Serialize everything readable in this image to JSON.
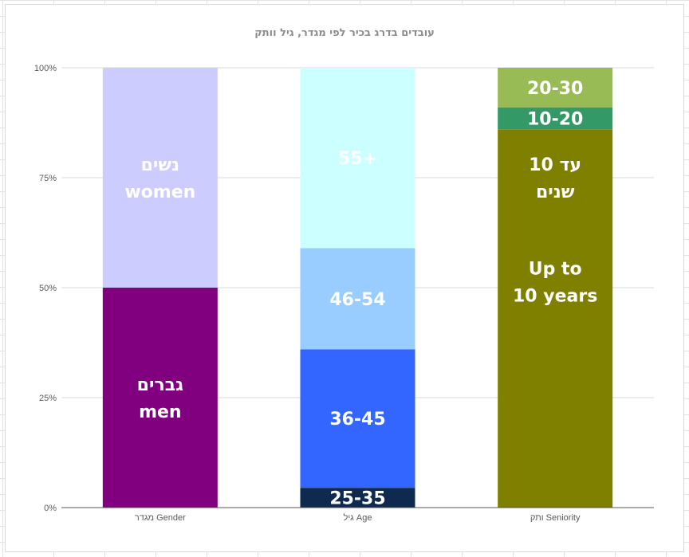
{
  "chart_data": {
    "type": "bar",
    "stacked": "percent",
    "title": "עובדים בדרג בכיר לפי מגדר, גיל וותק",
    "categories": [
      "מגדר Gender",
      "גיל Age",
      "ותק Seniority"
    ],
    "yticks": [
      "0%",
      "25%",
      "50%",
      "75%",
      "100%"
    ],
    "ylim": [
      0,
      100
    ],
    "grid": true,
    "bars": [
      {
        "category": "מגדר Gender",
        "segments": [
          {
            "label_lines": [
              "גברים",
              "men"
            ],
            "value": 50,
            "color": "#800080",
            "text_color": "#ffffff"
          },
          {
            "label_lines": [
              "נשים",
              "women"
            ],
            "value": 50,
            "color": "#ccccff",
            "text_color": "#ffffff"
          }
        ]
      },
      {
        "category": "גיל Age",
        "segments": [
          {
            "label_lines": [
              "25-35"
            ],
            "value": 4.5,
            "color": "#0e2a4f",
            "text_color": "#ffffff"
          },
          {
            "label_lines": [
              "36-45"
            ],
            "value": 31.5,
            "color": "#3366ff",
            "text_color": "#ffffff"
          },
          {
            "label_lines": [
              "46-54"
            ],
            "value": 23,
            "color": "#99ccff",
            "text_color": "#ffffff"
          },
          {
            "label_lines": [
              "55+"
            ],
            "value": 41,
            "color": "#ccffff",
            "text_color": "#ffffff"
          }
        ]
      },
      {
        "category": "ותק Seniority",
        "segments": [
          {
            "label_lines": [
              "Up to",
              "10 years"
            ],
            "value": 86,
            "color": "#808000",
            "text_color": "#ffffff",
            "label_offset": -46
          },
          {
            "label_lines": [
              "עד 10",
              "שנים"
            ],
            "value": 0,
            "color": "#808000",
            "text_color": "#ffffff",
            "label_at": 75
          },
          {
            "label_lines": [
              "10-20"
            ],
            "value": 5,
            "color": "#339966",
            "text_color": "#ffffff"
          },
          {
            "label_lines": [
              "20-30"
            ],
            "value": 9,
            "color": "#99bb55",
            "text_color": "#ffffff"
          }
        ]
      }
    ]
  }
}
